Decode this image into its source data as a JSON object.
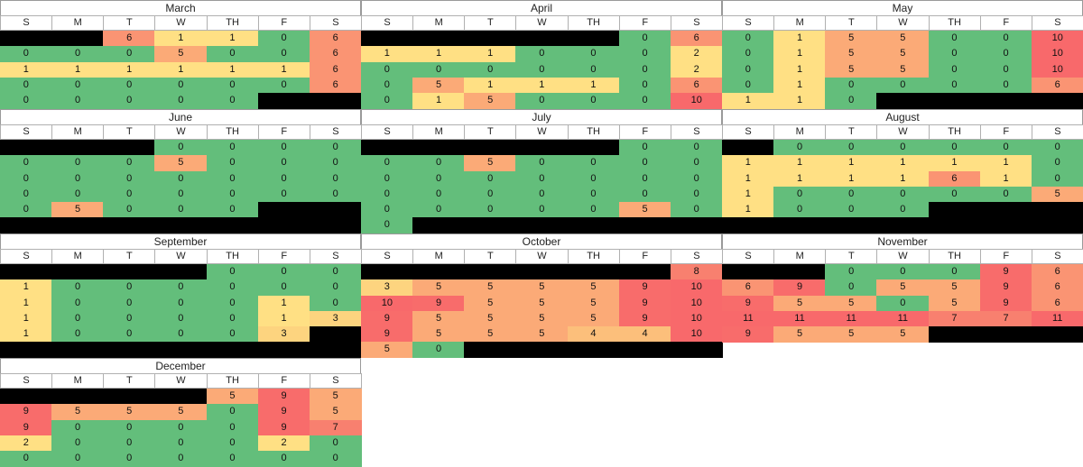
{
  "days": [
    "S",
    "M",
    "T",
    "W",
    "TH",
    "F",
    "S"
  ],
  "colors": {
    "0": "#63be7b",
    "1": "#ffe084",
    "2": "#ffe084",
    "3": "#fdd47f",
    "4": "#fcbf7b",
    "5": "#fbaa77",
    "6": "#fa9473",
    "7": "#f8806f",
    "8": "#f8806f",
    "9": "#f86c6b",
    "10": "#f8696b",
    "11": "#f8696b",
    "black": "#000000"
  },
  "months": [
    {
      "name": "March",
      "rows": [
        [
          null,
          null,
          6,
          1,
          1,
          0,
          6
        ],
        [
          0,
          0,
          0,
          5,
          0,
          0,
          6
        ],
        [
          1,
          1,
          1,
          1,
          1,
          1,
          6
        ],
        [
          0,
          0,
          0,
          0,
          0,
          0,
          6
        ],
        [
          0,
          0,
          0,
          0,
          0,
          null,
          null
        ]
      ]
    },
    {
      "name": "April",
      "rows": [
        [
          null,
          null,
          null,
          null,
          null,
          0,
          6
        ],
        [
          1,
          1,
          1,
          0,
          0,
          0,
          2
        ],
        [
          0,
          0,
          0,
          0,
          0,
          0,
          2
        ],
        [
          0,
          5,
          1,
          1,
          1,
          0,
          6
        ],
        [
          0,
          1,
          5,
          0,
          0,
          0,
          10
        ]
      ]
    },
    {
      "name": "May",
      "rows": [
        [
          0,
          1,
          5,
          5,
          0,
          0,
          10
        ],
        [
          0,
          1,
          5,
          5,
          0,
          0,
          10
        ],
        [
          0,
          1,
          5,
          5,
          0,
          0,
          10
        ],
        [
          0,
          1,
          0,
          0,
          0,
          0,
          6
        ],
        [
          1,
          1,
          0,
          null,
          null,
          null,
          null
        ]
      ]
    },
    {
      "name": "June",
      "rows": [
        [
          null,
          null,
          null,
          0,
          0,
          0,
          0
        ],
        [
          0,
          0,
          0,
          5,
          0,
          0,
          0
        ],
        [
          0,
          0,
          0,
          0,
          0,
          0,
          0
        ],
        [
          0,
          0,
          0,
          0,
          0,
          0,
          0
        ],
        [
          0,
          5,
          0,
          0,
          0,
          null,
          null
        ],
        [
          null,
          null,
          null,
          null,
          null,
          null,
          null
        ]
      ]
    },
    {
      "name": "July",
      "rows": [
        [
          null,
          null,
          null,
          null,
          null,
          0,
          0
        ],
        [
          0,
          0,
          5,
          0,
          0,
          0,
          0
        ],
        [
          0,
          0,
          0,
          0,
          0,
          0,
          0
        ],
        [
          0,
          0,
          0,
          0,
          0,
          0,
          0
        ],
        [
          0,
          0,
          0,
          0,
          0,
          5,
          0
        ],
        [
          0,
          null,
          null,
          null,
          null,
          null,
          null
        ]
      ]
    },
    {
      "name": "August",
      "rows": [
        [
          null,
          0,
          0,
          0,
          0,
          0,
          0
        ],
        [
          1,
          1,
          1,
          1,
          1,
          1,
          0
        ],
        [
          1,
          1,
          1,
          1,
          6,
          1,
          0
        ],
        [
          1,
          0,
          0,
          0,
          0,
          0,
          5
        ],
        [
          1,
          0,
          0,
          0,
          null,
          null,
          null
        ],
        [
          null,
          null,
          null,
          null,
          null,
          null,
          null
        ]
      ]
    },
    {
      "name": "September",
      "rows": [
        [
          null,
          null,
          null,
          null,
          0,
          0,
          0
        ],
        [
          1,
          0,
          0,
          0,
          0,
          0,
          0
        ],
        [
          1,
          0,
          0,
          0,
          0,
          1,
          0
        ],
        [
          1,
          0,
          0,
          0,
          0,
          1,
          3
        ],
        [
          1,
          0,
          0,
          0,
          0,
          3,
          null
        ],
        [
          null,
          null,
          null,
          null,
          null,
          null,
          null
        ]
      ]
    },
    {
      "name": "October",
      "rows": [
        [
          null,
          null,
          null,
          null,
          null,
          null,
          8
        ],
        [
          3,
          5,
          5,
          5,
          5,
          9,
          10
        ],
        [
          10,
          9,
          5,
          5,
          5,
          9,
          10
        ],
        [
          9,
          5,
          5,
          5,
          5,
          9,
          10
        ],
        [
          9,
          5,
          5,
          5,
          4,
          4,
          10
        ],
        [
          5,
          0,
          null,
          null,
          null,
          null,
          null
        ]
      ]
    },
    {
      "name": "November",
      "rows": [
        [
          null,
          null,
          0,
          0,
          0,
          9,
          6
        ],
        [
          6,
          9,
          0,
          5,
          5,
          9,
          6
        ],
        [
          9,
          5,
          5,
          0,
          5,
          9,
          6
        ],
        [
          11,
          11,
          11,
          11,
          7,
          7,
          11
        ],
        [
          9,
          5,
          5,
          5,
          null,
          null,
          null
        ]
      ]
    },
    {
      "name": "December",
      "rows": [
        [
          null,
          null,
          null,
          null,
          5,
          9,
          5
        ],
        [
          9,
          5,
          5,
          5,
          0,
          9,
          5
        ],
        [
          9,
          0,
          0,
          0,
          0,
          9,
          7
        ],
        [
          2,
          0,
          0,
          0,
          0,
          2,
          0
        ],
        [
          0,
          0,
          0,
          0,
          0,
          0,
          0
        ]
      ]
    }
  ]
}
